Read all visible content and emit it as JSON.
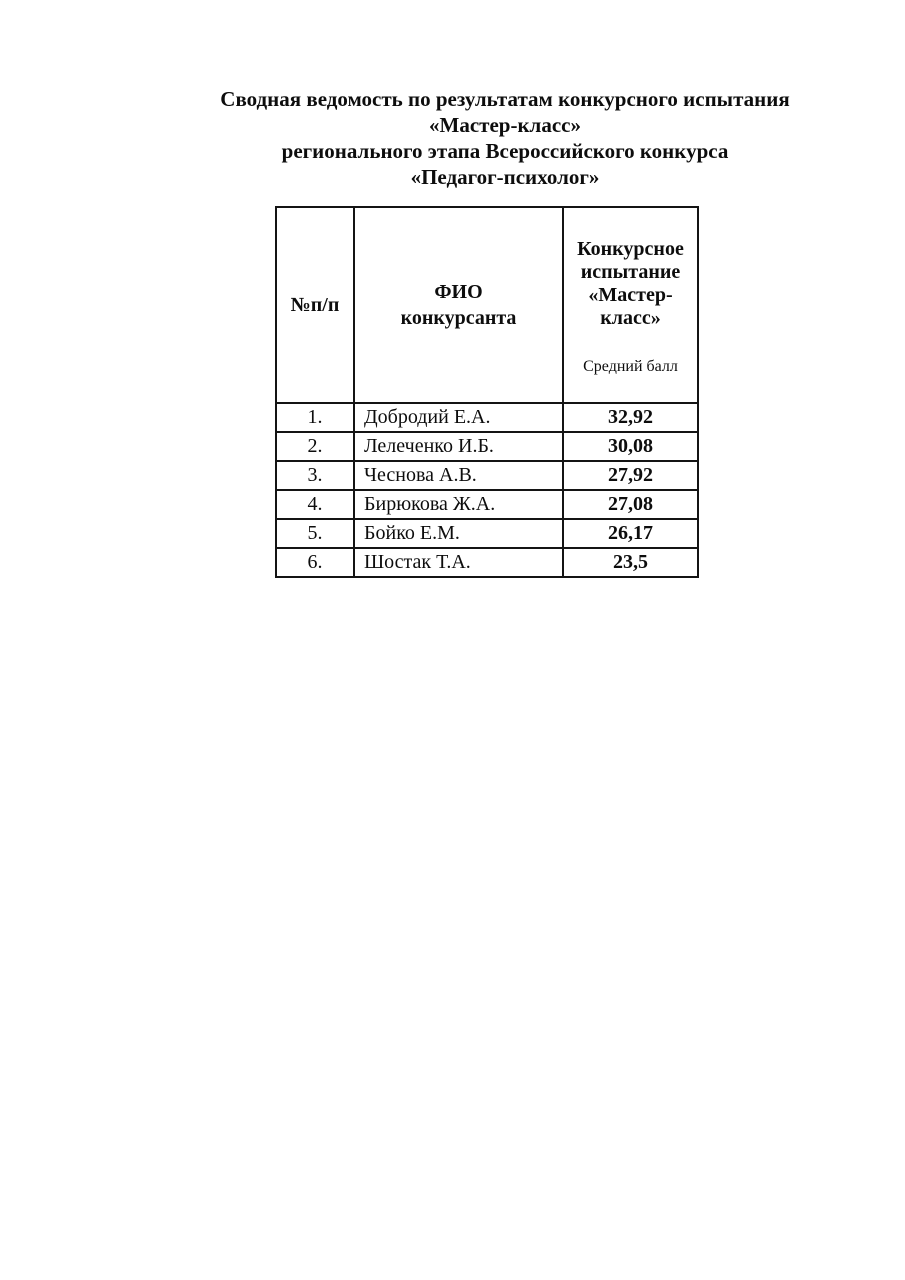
{
  "title": {
    "lines": [
      "Сводная ведомость по результатам конкурсного испытания",
      "«Мастер-класс»",
      "регионального этапа Всероссийского конкурса",
      "«Педагог-психолог»"
    ]
  },
  "table": {
    "headers": {
      "num": "№п/п",
      "contestant": "ФИО\nконкурсанта",
      "score_title": "Конкурсное\nиспытание\n«Мастер-\nкласс»",
      "score_subtitle": "Средний балл"
    },
    "rows": [
      {
        "num": "1.",
        "name": "Добродий Е.А.",
        "score": "32,92"
      },
      {
        "num": "2.",
        "name": "Лелеченко И.Б.",
        "score": "30,08"
      },
      {
        "num": "3.",
        "name": "Чеснова А.В.",
        "score": "27,92"
      },
      {
        "num": "4.",
        "name": "Бирюкова Ж.А.",
        "score": "27,08"
      },
      {
        "num": "5.",
        "name": "Бойко Е.М.",
        "score": "26,17"
      },
      {
        "num": "6.",
        "name": "Шостак Т.А.",
        "score": "23,5"
      }
    ]
  }
}
